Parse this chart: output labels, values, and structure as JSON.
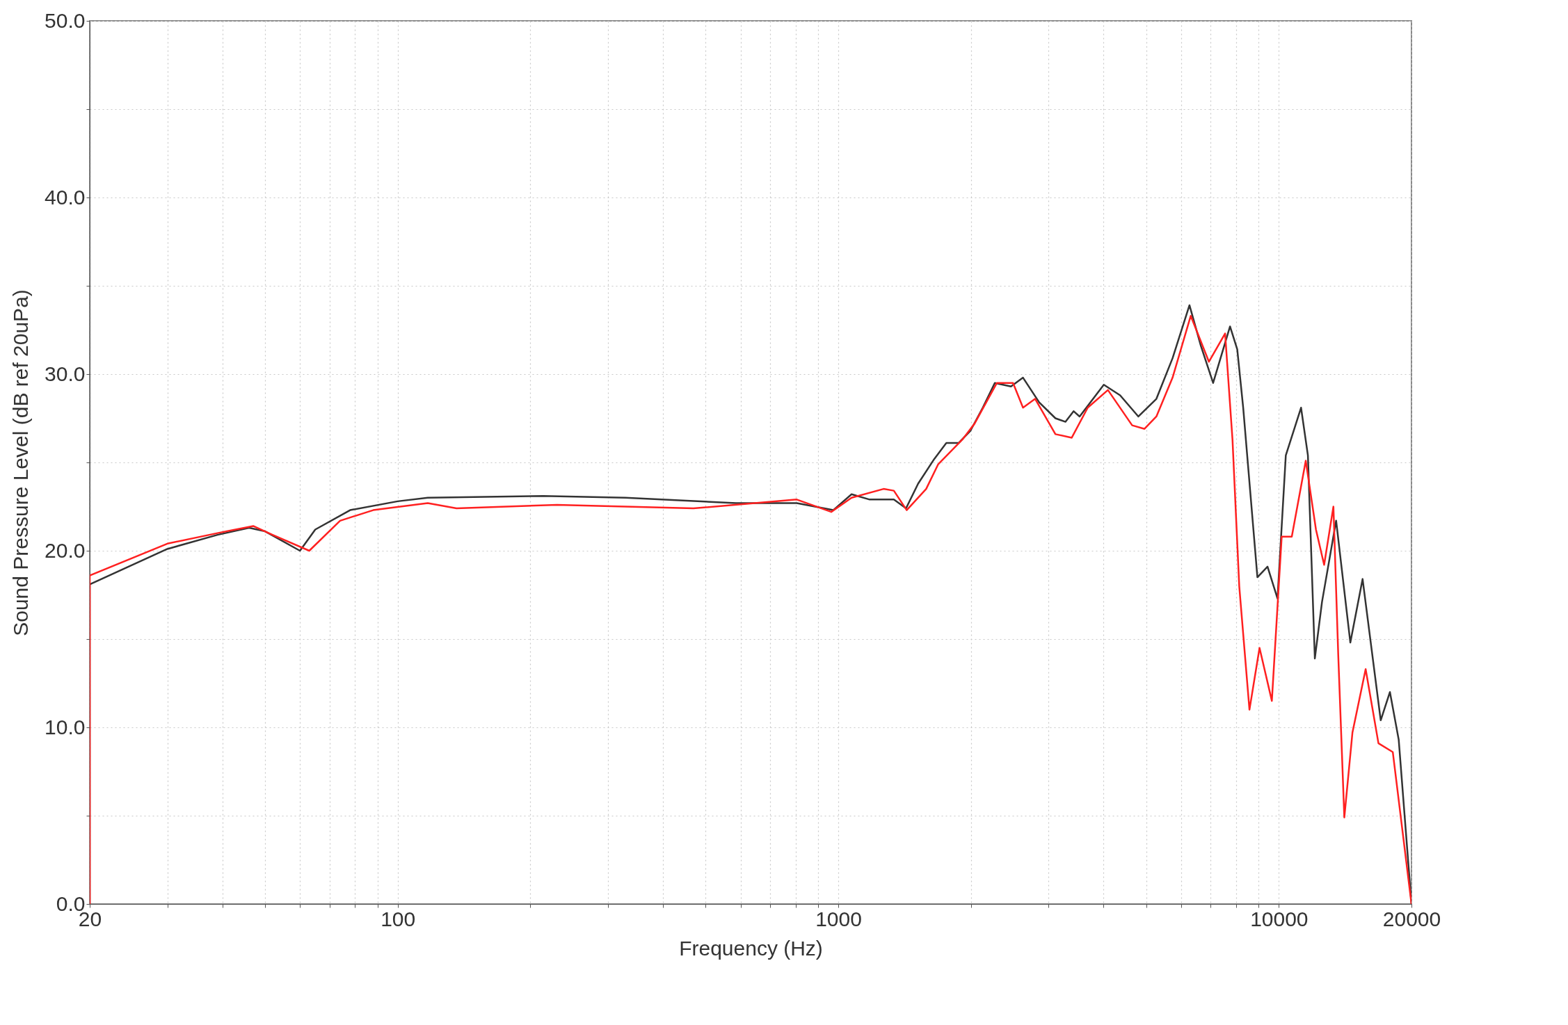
{
  "chart_data": {
    "type": "line",
    "xlabel": "Frequency (Hz)",
    "ylabel": "Sound Pressure Level (dB ref 20uPa)",
    "log": "x",
    "grid": true,
    "xlim": [
      20,
      20000
    ],
    "ylim": [
      0,
      50
    ],
    "xticks": [
      20,
      {
        "value": 30,
        "label": null
      },
      {
        "value": 40,
        "label": null
      },
      {
        "value": 50,
        "label": null
      },
      {
        "value": 60,
        "label": null
      },
      {
        "value": 70,
        "label": null
      },
      {
        "value": 80,
        "label": null
      },
      {
        "value": 90,
        "label": null
      },
      100,
      {
        "value": 200,
        "label": null
      },
      {
        "value": 300,
        "label": null
      },
      {
        "value": 400,
        "label": null
      },
      {
        "value": 500,
        "label": null
      },
      {
        "value": 600,
        "label": null
      },
      {
        "value": 700,
        "label": null
      },
      {
        "value": 800,
        "label": null
      },
      {
        "value": 900,
        "label": null
      },
      1000,
      {
        "value": 2000,
        "label": null
      },
      {
        "value": 3000,
        "label": null
      },
      {
        "value": 4000,
        "label": null
      },
      {
        "value": 5000,
        "label": null
      },
      {
        "value": 6000,
        "label": null
      },
      {
        "value": 7000,
        "label": null
      },
      {
        "value": 8000,
        "label": null
      },
      {
        "value": 9000,
        "label": null
      },
      10000,
      20000
    ],
    "yticks": [
      {
        "value": 0,
        "label": "0.0"
      },
      {
        "value": 5,
        "label": null
      },
      {
        "value": 10,
        "label": "10.0"
      },
      {
        "value": 15,
        "label": null
      },
      {
        "value": 20,
        "label": "20.0"
      },
      {
        "value": 25,
        "label": null
      },
      {
        "value": 30,
        "label": "30.0"
      },
      {
        "value": 35,
        "label": null
      },
      {
        "value": 40,
        "label": "40.0"
      },
      {
        "value": 45,
        "label": null
      },
      {
        "value": 50,
        "label": "50.0"
      }
    ],
    "series": [
      {
        "color": "#333333",
        "x": [
          20,
          20,
          30,
          39,
          46,
          50,
          60,
          65,
          78,
          100,
          117,
          214,
          329,
          586,
          805,
          974,
          1072,
          1178,
          1337,
          1425,
          1518,
          1652,
          1759,
          1875,
          1996,
          2128,
          2266,
          2466,
          2626,
          2858,
          3111,
          3279,
          3422,
          3530,
          4006,
          4363,
          4799,
          5273,
          5738,
          6268,
          6653,
          7093,
          7748,
          8046,
          8300,
          8940,
          9425,
          9930,
          10370,
          11230,
          11640,
          12070,
          12530,
          13490,
          14530,
          15490,
          17030,
          17870,
          18710,
          20000
        ],
        "values": [
          0,
          18.1,
          20.1,
          20.9,
          21.3,
          21.1,
          20.0,
          21.2,
          22.3,
          22.8,
          23.0,
          23.1,
          23.0,
          22.7,
          22.7,
          22.3,
          23.2,
          22.9,
          22.9,
          22.4,
          23.8,
          25.2,
          26.1,
          26.1,
          26.8,
          28.1,
          29.5,
          29.3,
          29.8,
          28.4,
          27.5,
          27.3,
          27.9,
          27.6,
          29.4,
          28.8,
          27.6,
          28.6,
          30.9,
          33.9,
          31.6,
          29.5,
          32.7,
          31.4,
          28.1,
          18.5,
          19.1,
          17.3,
          25.4,
          28.1,
          25.4,
          13.9,
          17.1,
          21.7,
          14.8,
          18.4,
          10.4,
          12.0,
          9.3,
          0
        ]
      },
      {
        "color": "#ff2020",
        "x": [
          20,
          20,
          30,
          39,
          47,
          52,
          63,
          74,
          88,
          117,
          136,
          230,
          469,
          805,
          964,
          1072,
          1267,
          1337,
          1430,
          1583,
          1686,
          1914,
          2039,
          2291,
          2493,
          2626,
          2798,
          3111,
          3388,
          3683,
          4093,
          4645,
          4955,
          5273,
          5738,
          6310,
          6939,
          7551,
          7848,
          8130,
          8576,
          9040,
          9641,
          10150,
          10700,
          11510,
          12140,
          12670,
          13300,
          13640,
          14080,
          14690,
          15740,
          16830,
          18140,
          20000
        ],
        "values": [
          0,
          18.6,
          20.4,
          21.0,
          21.4,
          20.9,
          20.0,
          21.7,
          22.3,
          22.7,
          22.4,
          22.6,
          22.4,
          22.9,
          22.2,
          23.0,
          23.5,
          23.4,
          22.3,
          23.5,
          24.9,
          26.3,
          27.2,
          29.5,
          29.5,
          28.1,
          28.6,
          26.6,
          26.4,
          28.1,
          29.1,
          27.1,
          26.9,
          27.6,
          29.8,
          33.3,
          30.7,
          32.3,
          26.3,
          18.0,
          11.0,
          14.5,
          11.5,
          20.8,
          20.8,
          25.1,
          21.2,
          19.2,
          22.5,
          14.1,
          4.9,
          9.7,
          13.3,
          9.1,
          8.6,
          0
        ]
      }
    ]
  }
}
